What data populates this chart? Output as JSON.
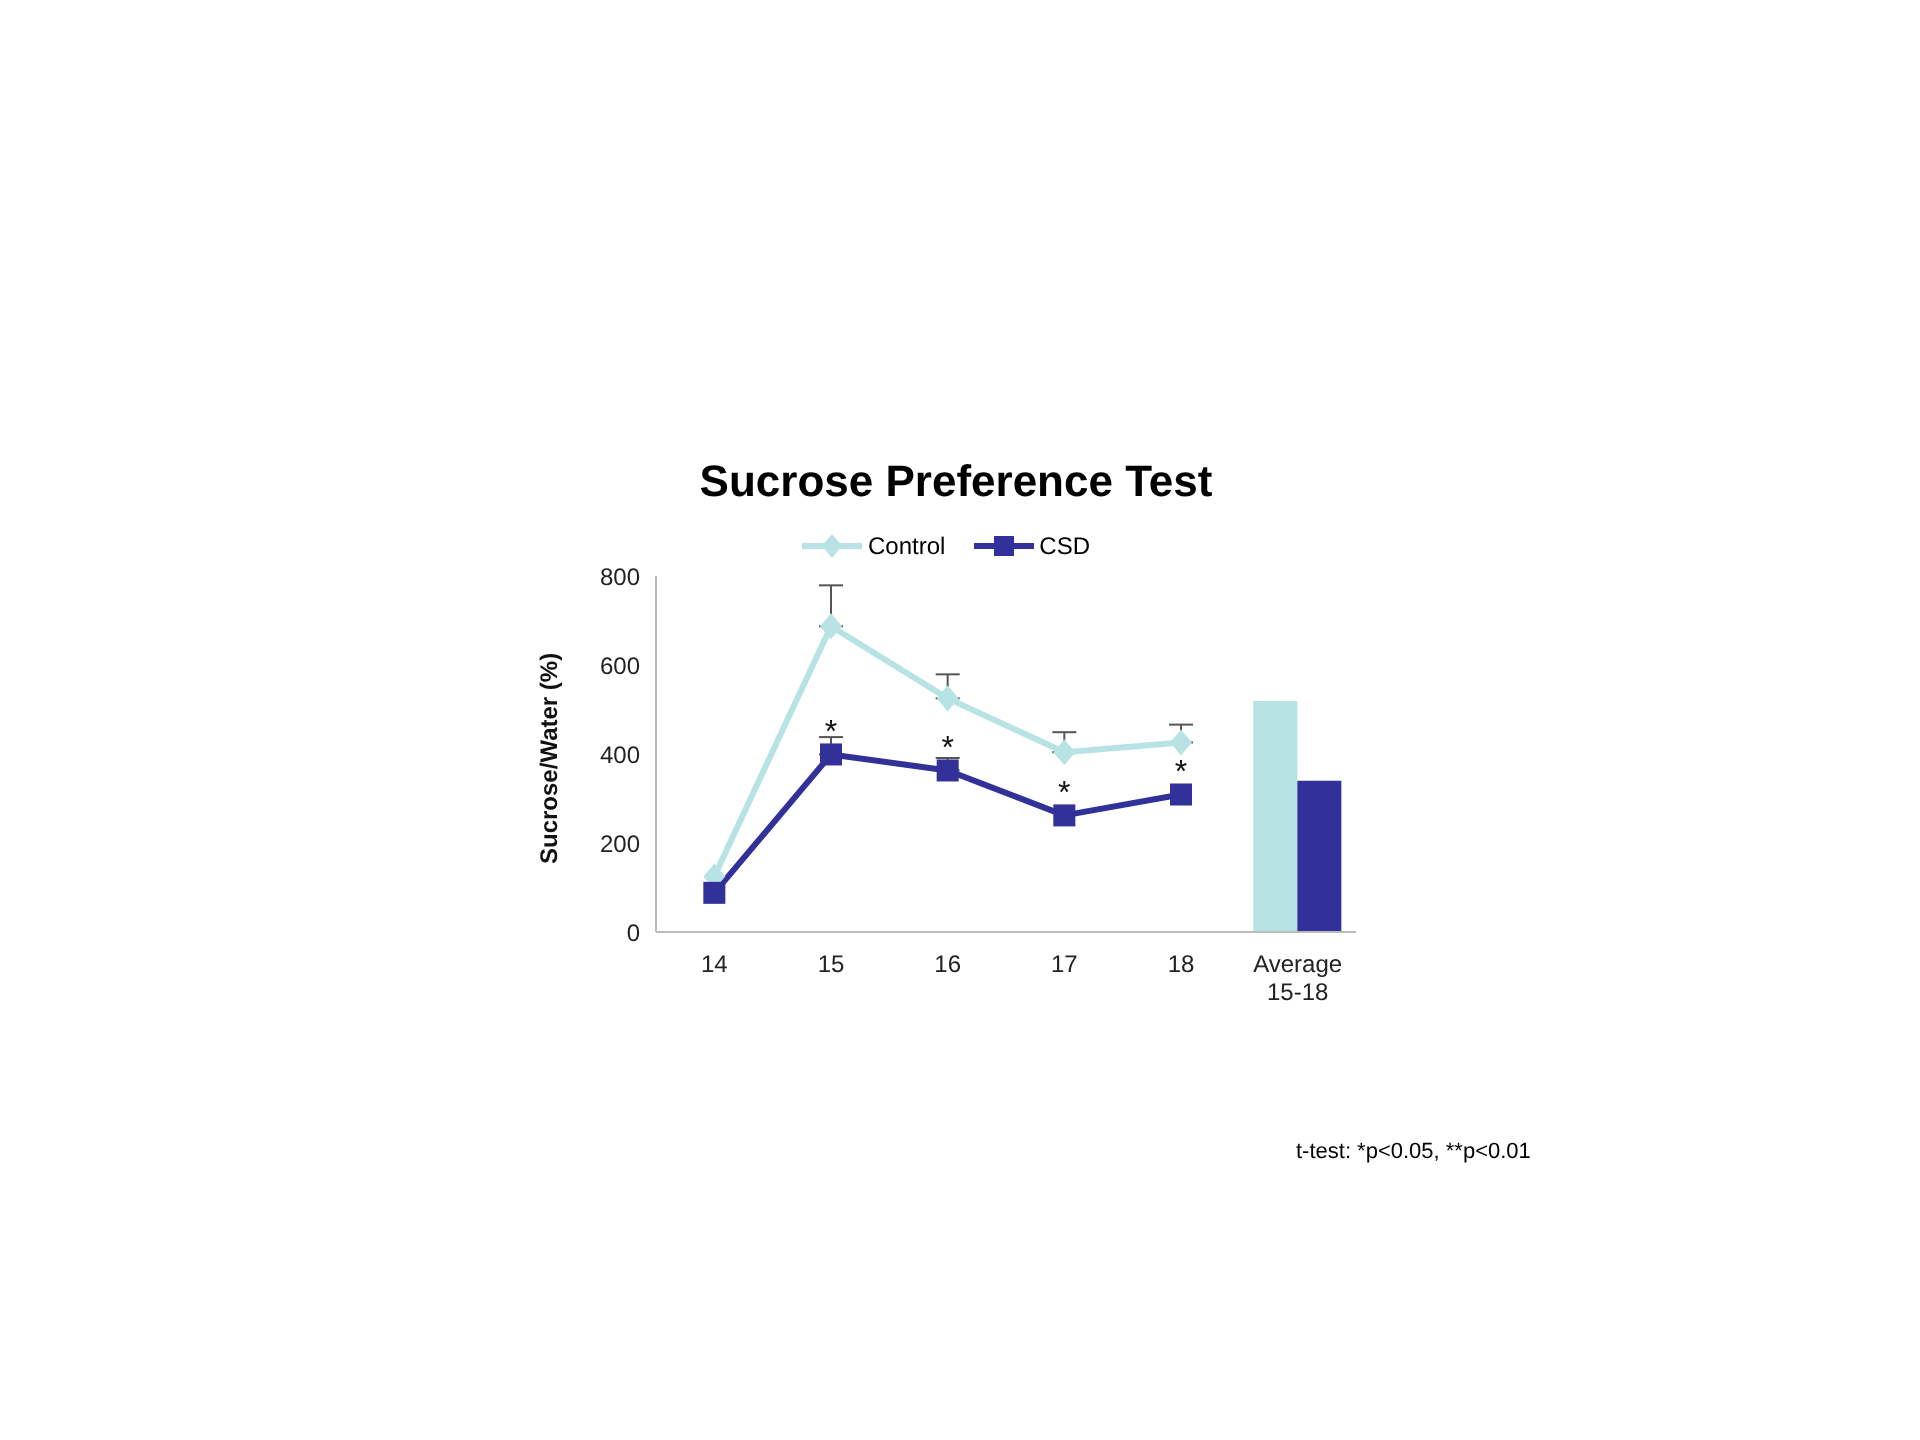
{
  "chart_data": {
    "type": "line",
    "title": "Sucrose Preference Test",
    "ylabel": "Sucrose/Water (%)",
    "categories": [
      "14",
      "15",
      "16",
      "17",
      "18",
      "Average 15-18"
    ],
    "ylim": [
      0,
      800
    ],
    "yticks": [
      0,
      200,
      400,
      600,
      800
    ],
    "grid": false,
    "legend": "top",
    "series": [
      {
        "name": "Control",
        "color": "#b7e3e4",
        "marker": "diamond",
        "values": [
          125,
          687,
          525,
          404,
          426,
          null
        ],
        "errors": [
          null,
          [
            687,
            779
          ],
          [
            525,
            579
          ],
          [
            404,
            449
          ],
          [
            426,
            466
          ],
          null
        ]
      },
      {
        "name": "CSD",
        "color": "#32319a",
        "marker": "square",
        "values": [
          88,
          399,
          363,
          262,
          309,
          null
        ],
        "errors": [
          null,
          [
            399,
            438
          ],
          [
            363,
            391
          ],
          null,
          null,
          null
        ]
      },
      {
        "type": "bar",
        "color": "#b7e3e4",
        "values": [
          null,
          null,
          null,
          null,
          null,
          519
        ]
      },
      {
        "type": "bar",
        "color": "#32319a",
        "values": [
          null,
          null,
          null,
          null,
          null,
          340
        ]
      }
    ],
    "annotations": [
      {
        "text": "*",
        "x": "15",
        "y": 399
      },
      {
        "text": "*",
        "x": "16",
        "y": 363
      },
      {
        "text": "*",
        "x": "17",
        "y": 262
      },
      {
        "text": "*",
        "x": "18",
        "y": 309
      },
      "t-test: *p<0.05, **p<0.01"
    ]
  }
}
